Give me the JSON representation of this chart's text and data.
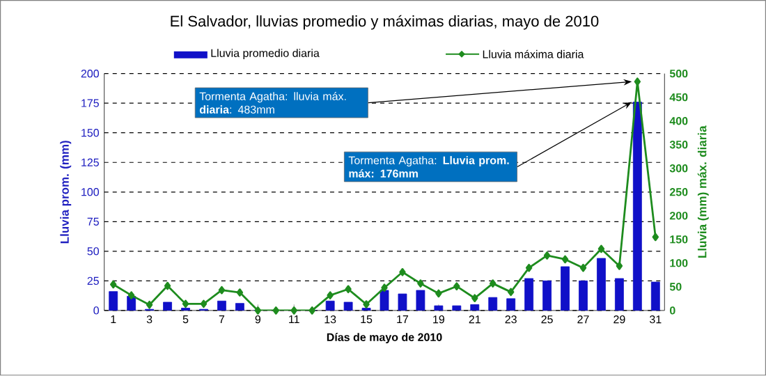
{
  "chart_data": {
    "type": "bar",
    "title": "El Salvador, lluvias promedio y máximas diarias, mayo de 2010",
    "xlabel": "Días de mayo de 2010",
    "ylabel": "Lluvia prom. (mm)",
    "y2label": "Lluvia (mm) máx. diaria",
    "x": [
      1,
      2,
      3,
      4,
      5,
      6,
      7,
      8,
      9,
      10,
      11,
      12,
      13,
      14,
      15,
      16,
      17,
      18,
      19,
      20,
      21,
      22,
      23,
      24,
      25,
      26,
      27,
      28,
      29,
      30,
      31
    ],
    "xlim": [
      0.5,
      31.5
    ],
    "xticks": [
      1,
      3,
      5,
      7,
      9,
      11,
      13,
      15,
      17,
      19,
      21,
      23,
      25,
      27,
      29,
      31
    ],
    "ylim": [
      0,
      200
    ],
    "yticks": [
      0,
      25,
      50,
      75,
      100,
      125,
      150,
      175,
      200
    ],
    "y2lim": [
      0,
      500
    ],
    "y2ticks": [
      0,
      50,
      100,
      150,
      200,
      250,
      300,
      350,
      400,
      450,
      500
    ],
    "series": [
      {
        "name": "Lluvia promedio diaria",
        "color": "#1010c8",
        "values": [
          16,
          12,
          1,
          7,
          2,
          1,
          8,
          6,
          0,
          0,
          0,
          0,
          8,
          7,
          2,
          17,
          14,
          17,
          4,
          4,
          5,
          11,
          10,
          27,
          25,
          37,
          25,
          44,
          27,
          176,
          24
        ]
      },
      {
        "name": "Lluvia máxima diaria",
        "type": "line",
        "axis": "y2",
        "color": "#1e8c1e",
        "marker": "diamond",
        "line_style": "solid",
        "values": [
          55,
          32,
          12,
          52,
          14,
          14,
          43,
          38,
          0,
          0,
          0,
          0,
          32,
          45,
          13,
          48,
          81,
          57,
          36,
          51,
          26,
          57,
          39,
          90,
          116,
          108,
          90,
          130,
          94,
          483,
          155
        ]
      }
    ],
    "annotations": [
      "Tormenta Agatha: lluvia máx. **diaria**: 483mm",
      "Tormenta Agatha: **Lluvia prom. máx:  176mm**"
    ],
    "grid": "y",
    "legend": "top"
  }
}
